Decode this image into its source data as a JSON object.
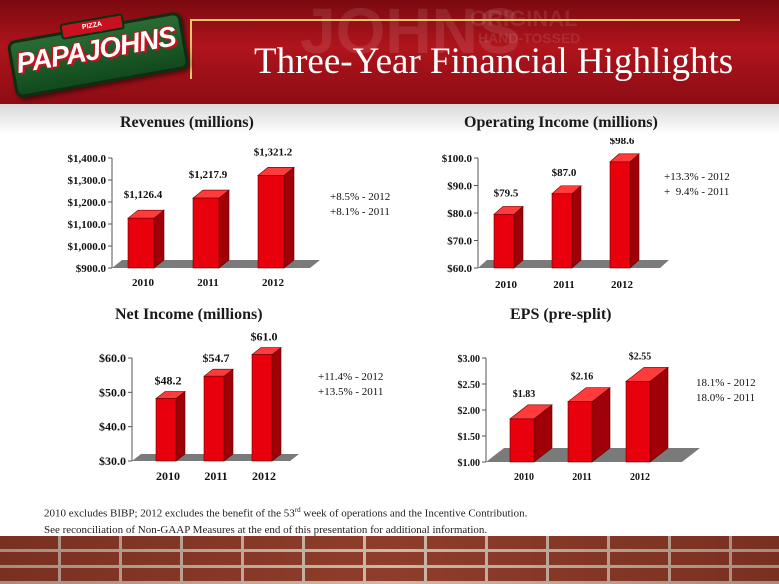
{
  "header": {
    "title": "Three-Year Financial Highlights",
    "logo_text": "PAPAJOHNS",
    "logo_top_text": "PIZZA",
    "background_words": [
      "JOHNS",
      "ORIGINAL",
      "HAND-TOSSED"
    ]
  },
  "growth": {
    "revenues": [
      "+8.5% - 2012",
      "+8.1% - 2011"
    ],
    "operating_income": [
      "+13.3% - 2012",
      "+  9.4% - 2011"
    ],
    "net_income": [
      "+11.4% - 2012",
      "+13.5% - 2011"
    ],
    "eps": [
      "18.1% - 2012",
      "18.0% - 2011"
    ]
  },
  "footnote": {
    "line1_before": "2010 excludes BIBP; 2012 excludes the benefit of the 53",
    "line1_sup": "rd",
    "line1_after": " week of operations and the Incentive Contribution.",
    "line2": "See reconciliation of Non-GAAP Measures at the end of this presentation for additional information."
  },
  "colors": {
    "bar": "#e8000c",
    "bar_side": "#a00008",
    "bar_top": "#ff3b3b",
    "floor": "#7a7a7a",
    "header_red": "#b0141c"
  },
  "chart_data": [
    {
      "id": "revenues",
      "type": "bar",
      "title": "Revenues (millions)",
      "categories": [
        "2010",
        "2011",
        "2012"
      ],
      "values": [
        1126.4,
        1217.9,
        1321.2
      ],
      "value_labels": [
        "$1,126.4",
        "$1,217.9",
        "$1,321.2"
      ],
      "ylim": [
        900,
        1400
      ],
      "yticks": [
        900,
        1000,
        1100,
        1200,
        1300,
        1400
      ],
      "ytick_labels": [
        "$900.0",
        "$1,000.0",
        "$1,100.0",
        "$1,200.0",
        "$1,300.0",
        "$1,400.0"
      ],
      "xlabel": "",
      "ylabel": "",
      "grid": false
    },
    {
      "id": "operating_income",
      "type": "bar",
      "title": "Operating Income (millions)",
      "categories": [
        "2010",
        "2011",
        "2012"
      ],
      "values": [
        79.5,
        87.0,
        98.6
      ],
      "value_labels": [
        "$79.5",
        "$87.0",
        "$98.6"
      ],
      "ylim": [
        60,
        100
      ],
      "yticks": [
        60,
        70,
        80,
        90,
        100
      ],
      "ytick_labels": [
        "$60.0",
        "$70.0",
        "$80.0",
        "$90.0",
        "$100.0"
      ],
      "xlabel": "",
      "ylabel": "",
      "grid": false
    },
    {
      "id": "net_income",
      "type": "bar",
      "title": "Net Income (millions)",
      "categories": [
        "2010",
        "2011",
        "2012"
      ],
      "values": [
        48.2,
        54.7,
        61.0
      ],
      "value_labels": [
        "$48.2",
        "$54.7",
        "$61.0"
      ],
      "ylim": [
        30,
        60
      ],
      "yticks": [
        30,
        40,
        50,
        60
      ],
      "ytick_labels": [
        "$30.0",
        "$40.0",
        "$50.0",
        "$60.0"
      ],
      "xlabel": "",
      "ylabel": "",
      "grid": false
    },
    {
      "id": "eps",
      "type": "bar",
      "title": "EPS (pre-split)",
      "categories": [
        "2010",
        "2011",
        "2012"
      ],
      "values": [
        1.83,
        2.16,
        2.55
      ],
      "value_labels": [
        "$1.83",
        "$2.16",
        "$2.55"
      ],
      "ylim": [
        1.0,
        3.0
      ],
      "yticks": [
        1.0,
        1.5,
        2.0,
        2.5,
        3.0
      ],
      "ytick_labels": [
        "$1.00",
        "$1.50",
        "$2.00",
        "$2.50",
        "$3.00"
      ],
      "xlabel": "",
      "ylabel": "",
      "grid": false
    }
  ]
}
